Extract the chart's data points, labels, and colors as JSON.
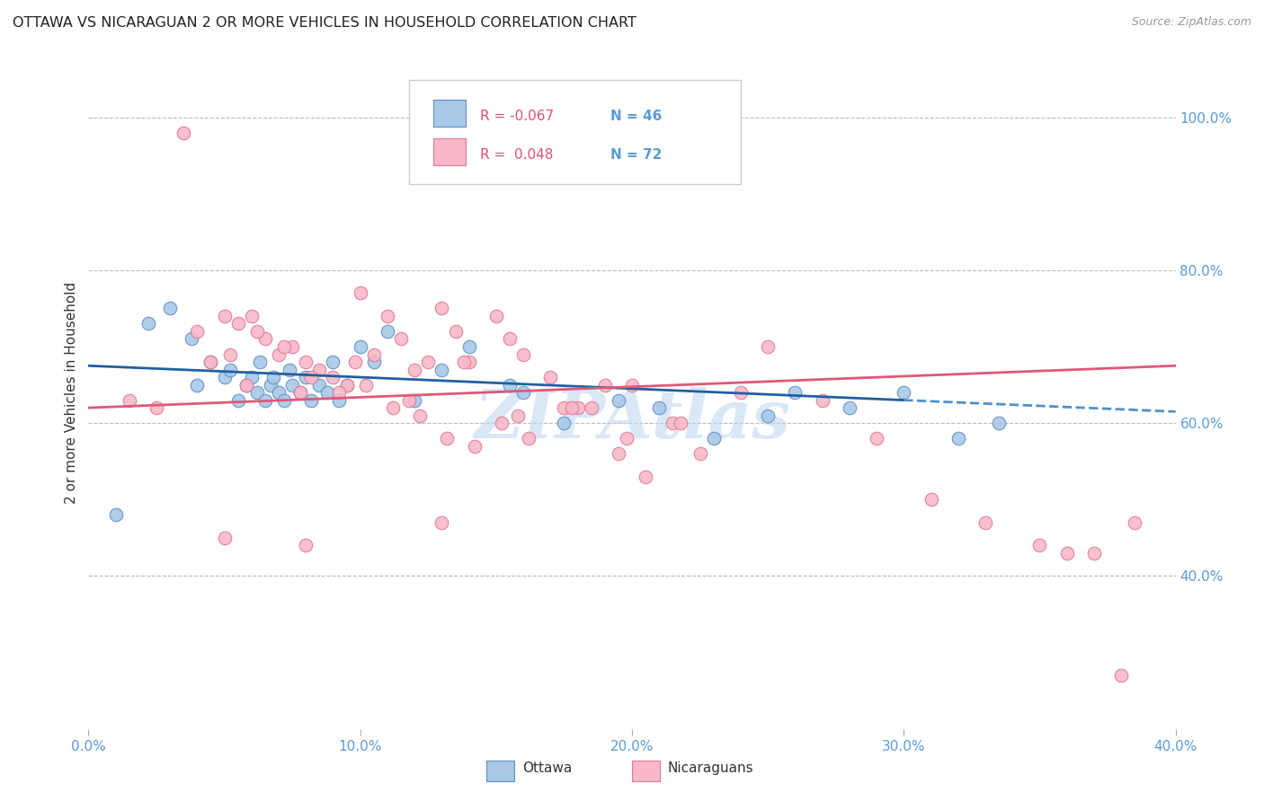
{
  "title": "OTTAWA VS NICARAGUAN 2 OR MORE VEHICLES IN HOUSEHOLD CORRELATION CHART",
  "source": "Source: ZipAtlas.com",
  "ylabel": "2 or more Vehicles in Household",
  "watermark": "ZIPAtlas",
  "xlim": [
    0.0,
    40.0
  ],
  "ylim": [
    20.0,
    108.0
  ],
  "xticklabels": [
    "0.0%",
    "10.0%",
    "20.0%",
    "30.0%",
    "40.0%"
  ],
  "xtick_vals": [
    0,
    10,
    20,
    30,
    40
  ],
  "ytick_right_labels": [
    "40.0%",
    "60.0%",
    "80.0%",
    "100.0%"
  ],
  "ytick_right_values": [
    40.0,
    60.0,
    80.0,
    100.0
  ],
  "legend_R_blue": "-0.067",
  "legend_N_blue": "46",
  "legend_R_pink": "0.048",
  "legend_N_pink": "72",
  "legend_label_blue": "Ottawa",
  "legend_label_pink": "Nicaraguans",
  "blue_color": "#a8c8e8",
  "pink_color": "#f8b8c8",
  "blue_edge": "#6090c0",
  "pink_edge": "#e07898",
  "title_color": "#222222",
  "axis_color": "#5b9bd5",
  "grid_color": "#bbbbbb",
  "watermark_color": "#c0d8f0",
  "blue_scatter_x": [
    1.0,
    2.2,
    3.0,
    3.8,
    4.0,
    4.5,
    5.0,
    5.2,
    5.5,
    5.8,
    6.0,
    6.2,
    6.3,
    6.5,
    6.7,
    6.8,
    7.0,
    7.2,
    7.4,
    7.5,
    7.8,
    8.0,
    8.2,
    8.5,
    8.8,
    9.0,
    9.2,
    9.5,
    10.0,
    10.5,
    11.0,
    12.0,
    13.0,
    14.0,
    15.5,
    16.0,
    17.5,
    19.5,
    21.0,
    23.0,
    25.0,
    26.0,
    28.0,
    30.0,
    32.0,
    33.5
  ],
  "blue_scatter_y": [
    48.0,
    73.0,
    75.0,
    71.0,
    65.0,
    68.0,
    66.0,
    67.0,
    63.0,
    65.0,
    66.0,
    64.0,
    68.0,
    63.0,
    65.0,
    66.0,
    64.0,
    63.0,
    67.0,
    65.0,
    64.0,
    66.0,
    63.0,
    65.0,
    64.0,
    68.0,
    63.0,
    65.0,
    70.0,
    68.0,
    72.0,
    63.0,
    67.0,
    70.0,
    65.0,
    64.0,
    60.0,
    63.0,
    62.0,
    58.0,
    61.0,
    64.0,
    62.0,
    64.0,
    58.0,
    60.0
  ],
  "pink_scatter_x": [
    1.5,
    2.5,
    3.5,
    4.5,
    5.0,
    5.5,
    6.0,
    6.5,
    7.0,
    7.5,
    8.0,
    8.5,
    9.0,
    9.5,
    10.0,
    10.5,
    11.0,
    11.5,
    12.0,
    12.5,
    13.0,
    13.5,
    14.0,
    15.0,
    15.5,
    16.0,
    17.0,
    18.0,
    19.0,
    20.0,
    4.0,
    5.2,
    6.2,
    7.2,
    8.2,
    9.2,
    10.2,
    11.2,
    12.2,
    13.2,
    14.2,
    15.2,
    16.2,
    17.5,
    18.5,
    19.5,
    20.5,
    21.5,
    22.5,
    24.0,
    5.8,
    7.8,
    9.8,
    11.8,
    13.8,
    15.8,
    17.8,
    19.8,
    21.8,
    25.0,
    27.0,
    29.0,
    31.0,
    33.0,
    35.0,
    36.0,
    37.0,
    38.5,
    5.0,
    8.0,
    13.0,
    38.0
  ],
  "pink_scatter_y": [
    63.0,
    62.0,
    98.0,
    68.0,
    74.0,
    73.0,
    74.0,
    71.0,
    69.0,
    70.0,
    68.0,
    67.0,
    66.0,
    65.0,
    77.0,
    69.0,
    74.0,
    71.0,
    67.0,
    68.0,
    75.0,
    72.0,
    68.0,
    74.0,
    71.0,
    69.0,
    66.0,
    62.0,
    65.0,
    65.0,
    72.0,
    69.0,
    72.0,
    70.0,
    66.0,
    64.0,
    65.0,
    62.0,
    61.0,
    58.0,
    57.0,
    60.0,
    58.0,
    62.0,
    62.0,
    56.0,
    53.0,
    60.0,
    56.0,
    64.0,
    65.0,
    64.0,
    68.0,
    63.0,
    68.0,
    61.0,
    62.0,
    58.0,
    60.0,
    70.0,
    63.0,
    58.0,
    50.0,
    47.0,
    44.0,
    43.0,
    43.0,
    47.0,
    45.0,
    44.0,
    47.0,
    27.0
  ],
  "blue_trend_x0": 0.0,
  "blue_trend_x1": 40.0,
  "blue_trend_y0": 67.5,
  "blue_trend_y1": 61.5,
  "pink_trend_x0": 0.0,
  "pink_trend_x1": 40.0,
  "pink_trend_y0": 62.0,
  "pink_trend_y1": 67.5,
  "blue_solid_x1": 30.0,
  "figsize": [
    14.06,
    8.92
  ],
  "dpi": 100
}
